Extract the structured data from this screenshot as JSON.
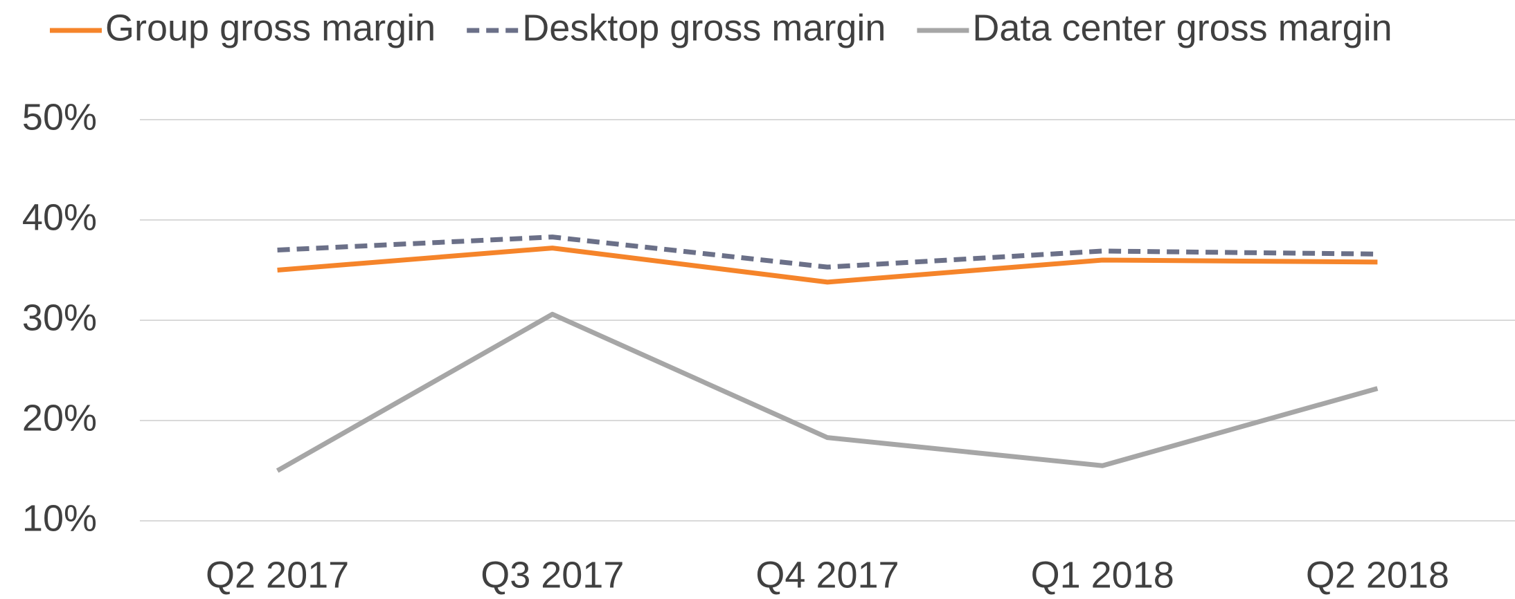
{
  "chart_data": {
    "type": "line",
    "categories": [
      "Q2 2017",
      "Q3 2017",
      "Q4 2017",
      "Q1 2018",
      "Q2 2018"
    ],
    "series": [
      {
        "name": "Group gross margin",
        "color": "#f5842a",
        "dash": false,
        "values": [
          35.0,
          37.2,
          33.8,
          36.0,
          35.8
        ]
      },
      {
        "name": "Desktop gross margin",
        "color": "#6b7088",
        "dash": true,
        "values": [
          37.0,
          38.3,
          35.3,
          36.9,
          36.6
        ]
      },
      {
        "name": "Data center gross margin",
        "color": "#a6a6a6",
        "dash": false,
        "values": [
          15.0,
          30.6,
          18.3,
          15.5,
          23.2
        ]
      }
    ],
    "ylim": [
      10,
      50
    ],
    "yticks": [
      {
        "value": 10,
        "label": "10%"
      },
      {
        "value": 20,
        "label": "20%"
      },
      {
        "value": 30,
        "label": "30%"
      },
      {
        "value": 40,
        "label": "40%"
      },
      {
        "value": 50,
        "label": "50%"
      }
    ],
    "grid": true,
    "legend": "top"
  }
}
